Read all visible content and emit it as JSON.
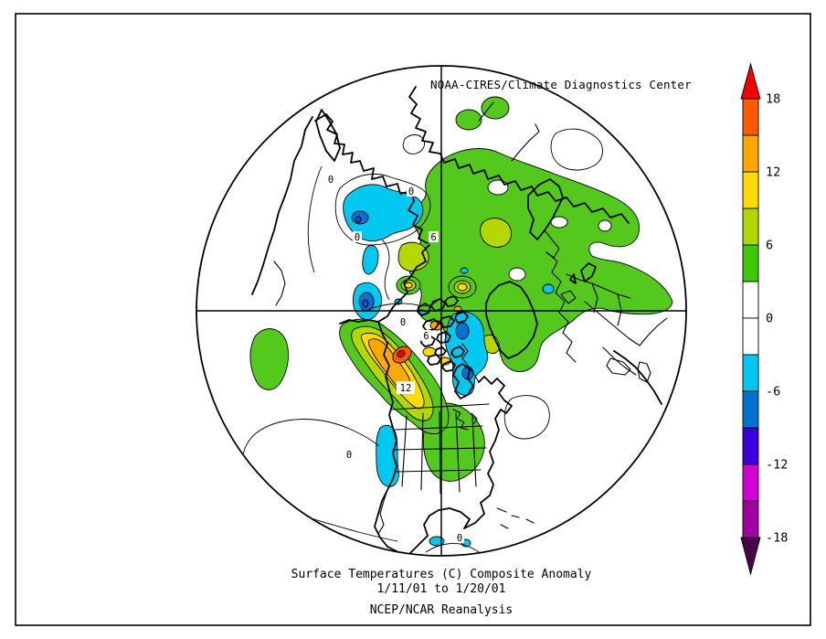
{
  "header": {
    "credit": "NOAA-CIRES/Climate Diagnostics Center"
  },
  "captions": {
    "line1": "Surface Temperatures (C)    Composite Anomaly",
    "line2": "1/11/01  to 1/20/01",
    "line3": "NCEP/NCAR Reanalysis"
  },
  "colorbar": {
    "units": "C",
    "over": {
      "color": "#F50000"
    },
    "under": {
      "color": "#4B004B"
    },
    "segments": [
      {
        "from": 15,
        "to": 18,
        "color": "#FF5A00"
      },
      {
        "from": 12,
        "to": 15,
        "color": "#FFA800"
      },
      {
        "from": 9,
        "to": 12,
        "color": "#FFDC00"
      },
      {
        "from": 6,
        "to": 9,
        "color": "#AFD700"
      },
      {
        "from": 3,
        "to": 6,
        "color": "#41C805"
      },
      {
        "from": 0,
        "to": 3,
        "color": "#FFFFFF"
      },
      {
        "from": -3,
        "to": 0,
        "color": "#FFFFFF"
      },
      {
        "from": -6,
        "to": -3,
        "color": "#00C8F0"
      },
      {
        "from": -9,
        "to": -6,
        "color": "#0073D2"
      },
      {
        "from": -12,
        "to": -9,
        "color": "#3C00DC"
      },
      {
        "from": -15,
        "to": -12,
        "color": "#D200D2"
      },
      {
        "from": -18,
        "to": -15,
        "color": "#A000A0"
      }
    ],
    "tick_labels": [
      "18",
      "12",
      "6",
      "0",
      "-6",
      "-12",
      "-18"
    ]
  },
  "map": {
    "projection": "Northern Hemisphere polar stereographic",
    "palette": {
      "green": "#55C81E",
      "yellow_green": "#B4D700",
      "yellow": "#FFDC00",
      "orange": "#FFA800",
      "orange_red": "#FF5A00",
      "red": "#F50000",
      "cyan": "#00C8F0",
      "blue": "#0073D2",
      "deep_blue": "#2846C8",
      "white": "#FFFFFF"
    },
    "contour_labels": [
      {
        "text": "0"
      },
      {
        "text": "0"
      },
      {
        "text": "0"
      },
      {
        "text": "0"
      },
      {
        "text": "6"
      },
      {
        "text": "6"
      },
      {
        "text": "12"
      },
      {
        "text": "0"
      },
      {
        "text": "0"
      }
    ]
  }
}
